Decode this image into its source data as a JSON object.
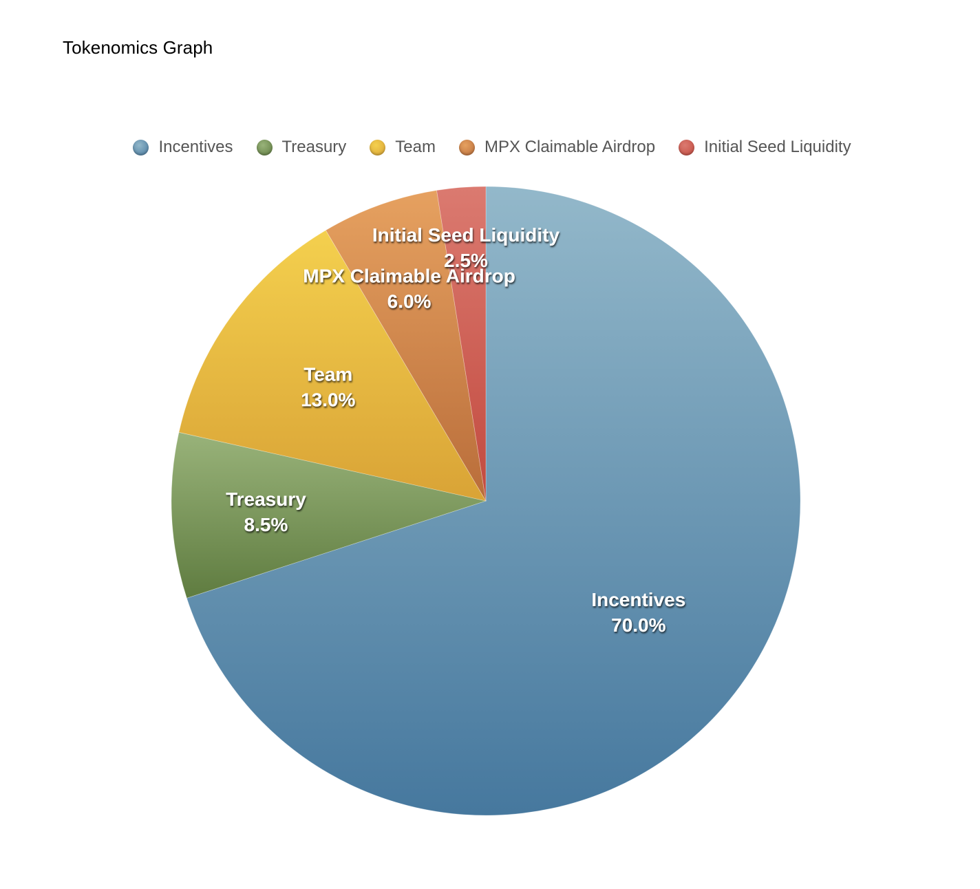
{
  "title": "Tokenomics Graph",
  "chart_data": {
    "type": "pie",
    "title": "Tokenomics Graph",
    "legend_position": "top",
    "slices": [
      {
        "label": "Incentives",
        "value": 70.0,
        "value_label": "70.0%",
        "color": "#5f8fb0",
        "color_light": "#93b8ca",
        "color_dark": "#46789e"
      },
      {
        "label": "Treasury",
        "value": 8.5,
        "value_label": "8.5%",
        "color": "#7b9a5a",
        "color_light": "#99b37a",
        "color_dark": "#5f7c40"
      },
      {
        "label": "Team",
        "value": 13.0,
        "value_label": "13.0%",
        "color": "#e3b641",
        "color_light": "#f4d04e",
        "color_dark": "#d9a336"
      },
      {
        "label": "MPX Claimable Airdrop",
        "value": 6.0,
        "value_label": "6.0%",
        "color": "#d18b4c",
        "color_light": "#e6a160",
        "color_dark": "#b96d3a"
      },
      {
        "label": "Initial Seed Liquidity",
        "value": 2.5,
        "value_label": "2.5%",
        "color": "#cf6456",
        "color_light": "#db7a70",
        "color_dark": "#c24a3f"
      }
    ]
  }
}
